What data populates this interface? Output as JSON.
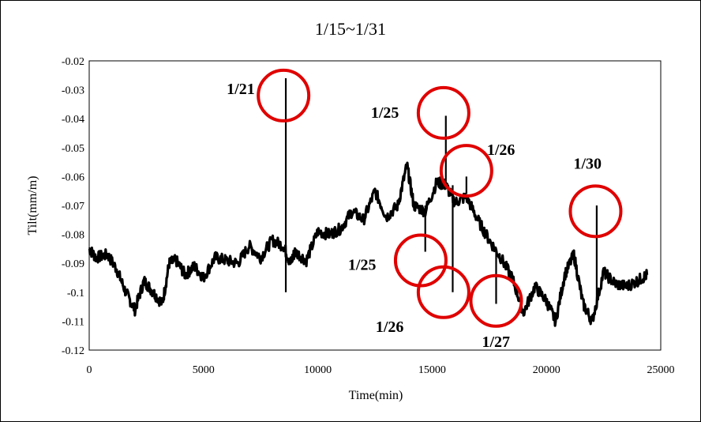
{
  "chart_data": {
    "type": "line",
    "title": "1/15~1/31",
    "xlabel": "Time(min)",
    "ylabel": "Tilt(mm/m)",
    "xlim": [
      0,
      25000
    ],
    "ylim": [
      -0.02,
      -0.12
    ],
    "y_axis_reversed": true,
    "grid": false,
    "legend": "none",
    "line_color": "#000000",
    "annotation_color": "#e00000",
    "x_ticks": [
      "0",
      "5000",
      "10000",
      "15000",
      "20000",
      "25000"
    ],
    "x_tick_values": [
      0,
      5000,
      10000,
      15000,
      20000,
      25000
    ],
    "y_ticks": [
      "-0.02",
      "-0.03",
      "-0.04",
      "-0.05",
      "-0.06",
      "-0.07",
      "-0.08",
      "-0.09",
      "-0.1",
      "-0.11",
      "-0.12"
    ],
    "y_tick_values": [
      -0.02,
      -0.03,
      -0.04,
      -0.05,
      -0.06,
      -0.07,
      -0.08,
      -0.09,
      -0.1,
      -0.11,
      -0.12
    ],
    "series": [
      {
        "x": [
          0,
          300,
          800,
          1200,
          1600,
          2000,
          2400,
          2800,
          3200,
          3500,
          3800,
          4200,
          4600,
          5000,
          5500,
          6000,
          6500,
          7000,
          7500,
          8000,
          8500,
          8800,
          9000,
          9500,
          10000,
          10500,
          11000,
          11500,
          12000,
          12500,
          13000,
          13500,
          13900,
          14200,
          14700,
          15200,
          15600,
          16000,
          16500,
          17000,
          17500,
          18000,
          18500,
          19000,
          19500,
          20000,
          20400,
          20800,
          21200,
          21600,
          22000,
          22500,
          23000,
          23500,
          24000,
          24400
        ],
        "y": [
          -0.085,
          -0.088,
          -0.087,
          -0.092,
          -0.1,
          -0.106,
          -0.096,
          -0.1,
          -0.104,
          -0.09,
          -0.089,
          -0.094,
          -0.091,
          -0.095,
          -0.088,
          -0.089,
          -0.09,
          -0.084,
          -0.088,
          -0.082,
          -0.084,
          -0.09,
          -0.086,
          -0.089,
          -0.079,
          -0.08,
          -0.078,
          -0.072,
          -0.075,
          -0.065,
          -0.074,
          -0.07,
          -0.056,
          -0.07,
          -0.072,
          -0.062,
          -0.063,
          -0.069,
          -0.067,
          -0.075,
          -0.082,
          -0.088,
          -0.095,
          -0.107,
          -0.098,
          -0.103,
          -0.11,
          -0.094,
          -0.087,
          -0.104,
          -0.11,
          -0.093,
          -0.097,
          -0.098,
          -0.096,
          -0.094
        ]
      }
    ],
    "spikes": [
      {
        "x": 8600,
        "y_start": -0.084,
        "y_end": -0.026
      },
      {
        "x": 8600,
        "y_start": -0.084,
        "y_end": -0.1
      },
      {
        "x": 14700,
        "y_start": -0.07,
        "y_end": -0.086
      },
      {
        "x": 15600,
        "y_start": -0.063,
        "y_end": -0.039
      },
      {
        "x": 15900,
        "y_start": -0.063,
        "y_end": -0.1
      },
      {
        "x": 16500,
        "y_start": -0.066,
        "y_end": -0.06
      },
      {
        "x": 17800,
        "y_start": -0.085,
        "y_end": -0.104
      },
      {
        "x": 22200,
        "y_start": -0.105,
        "y_end": -0.07
      }
    ],
    "annotations": [
      {
        "label": "1/21",
        "cx": 8500,
        "cy": -0.032
      },
      {
        "label": "1/25",
        "cx": 15500,
        "cy": -0.038
      },
      {
        "label": "1/26",
        "cx": 16500,
        "cy": -0.058
      },
      {
        "label": "1/30",
        "cx": 22150,
        "cy": -0.072
      },
      {
        "label": "1/25",
        "cx": 14500,
        "cy": -0.089
      },
      {
        "label": "1/26",
        "cx": 15500,
        "cy": -0.1
      },
      {
        "label": "1/27",
        "cx": 17800,
        "cy": -0.103
      }
    ]
  }
}
